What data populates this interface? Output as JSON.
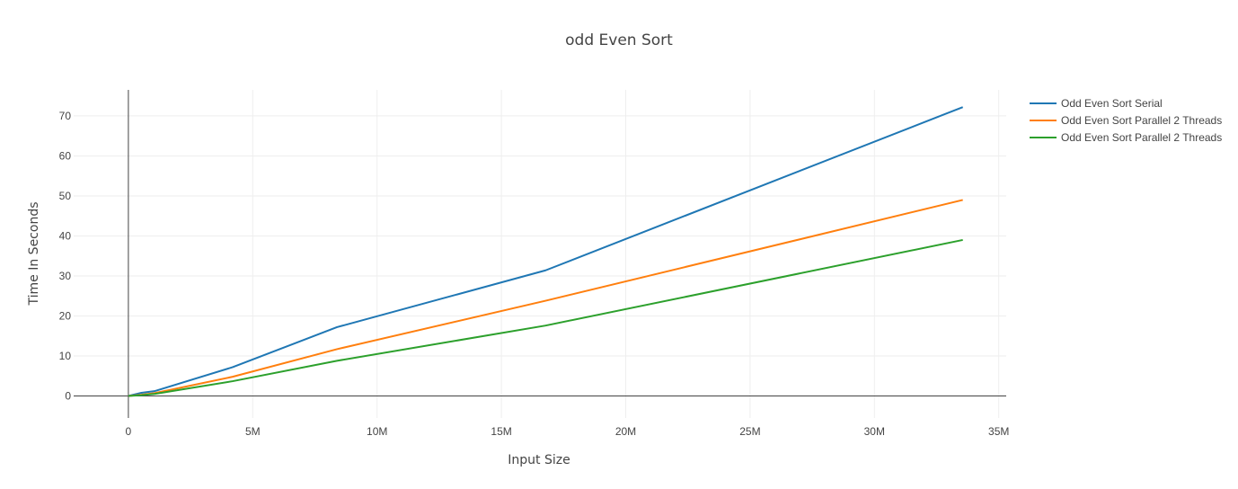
{
  "chart_data": {
    "type": "line",
    "title": "odd Even Sort",
    "xlabel": "Input Size",
    "ylabel": "Time In Seconds",
    "xlim": [
      -2200000,
      35300000
    ],
    "ylim": [
      -5.5,
      76.5
    ],
    "x_ticks": [
      0,
      5000000,
      10000000,
      15000000,
      20000000,
      25000000,
      30000000,
      35000000
    ],
    "x_tick_labels": [
      "0",
      "5M",
      "10M",
      "15M",
      "20M",
      "25M",
      "30M",
      "35M"
    ],
    "y_ticks": [
      0,
      10,
      20,
      30,
      40,
      50,
      60,
      70
    ],
    "y_tick_labels": [
      "0",
      "10",
      "20",
      "30",
      "40",
      "50",
      "60",
      "70"
    ],
    "grid": true,
    "legend_position": "top-right",
    "series": [
      {
        "name": "Odd Even Sort Serial",
        "color": "#1f77b4",
        "x": [
          0,
          524288,
          1048576,
          4194304,
          8388608,
          16777216,
          33554432
        ],
        "y": [
          0,
          0.8,
          1.2,
          7.2,
          17.2,
          31.4,
          72.2
        ]
      },
      {
        "name": "Odd Even Sort Parallel 2 Threads",
        "color": "#ff7f0e",
        "x": [
          0,
          524288,
          1048576,
          4194304,
          8388608,
          16777216,
          33554432
        ],
        "y": [
          0,
          0.3,
          0.7,
          4.8,
          11.7,
          23.8,
          49.0
        ]
      },
      {
        "name": "Odd Even Sort Parallel 2 Threads",
        "color": "#2ca02c",
        "x": [
          0,
          524288,
          1048576,
          4194304,
          8388608,
          16777216,
          33554432
        ],
        "y": [
          0,
          0.2,
          0.5,
          3.7,
          8.8,
          17.6,
          39.0
        ]
      }
    ]
  }
}
